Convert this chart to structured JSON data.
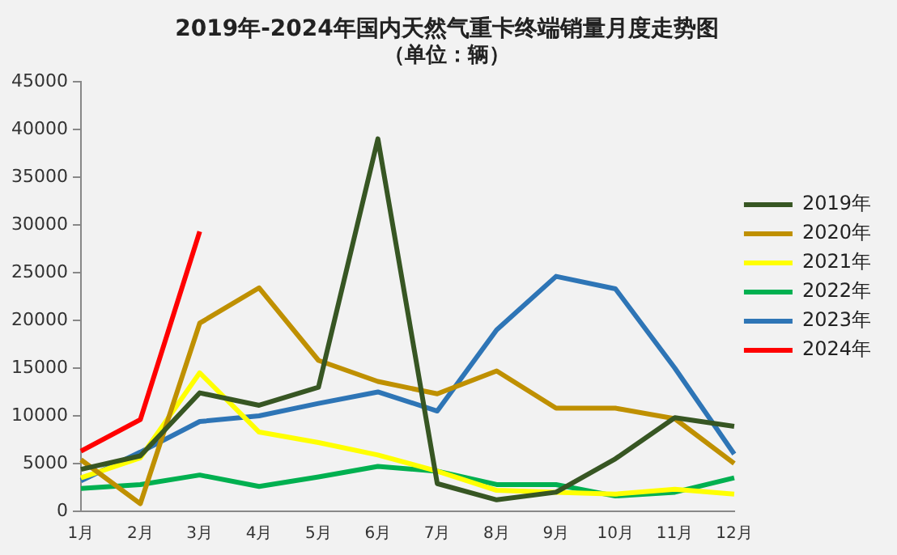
{
  "chart_data": {
    "type": "line",
    "title": "2019年-2024年国内天然气重卡终端销量月度走势图",
    "subtitle": "（单位：辆）",
    "categories": [
      "1月",
      "2月",
      "3月",
      "4月",
      "5月",
      "6月",
      "7月",
      "8月",
      "9月",
      "10月",
      "11月",
      "12月"
    ],
    "series": [
      {
        "name": "2019年",
        "color": "#375623",
        "values": [
          4400,
          5800,
          12400,
          11100,
          13000,
          39000,
          2900,
          1200,
          2000,
          5500,
          9800,
          8900
        ]
      },
      {
        "name": "2020年",
        "color": "#bf9000",
        "values": [
          5400,
          800,
          19700,
          23400,
          15800,
          13600,
          12300,
          14700,
          10800,
          10800,
          9700,
          5000
        ]
      },
      {
        "name": "2021年",
        "color": "#ffff00",
        "values": [
          3500,
          5600,
          14500,
          8300,
          7200,
          5900,
          4200,
          2200,
          2000,
          1800,
          2300,
          1800
        ]
      },
      {
        "name": "2022年",
        "color": "#00b050",
        "values": [
          2400,
          2800,
          3800,
          2600,
          3600,
          4700,
          4200,
          2800,
          2800,
          1600,
          2000,
          3500
        ]
      },
      {
        "name": "2023年",
        "color": "#2e75b6",
        "values": [
          3200,
          6200,
          9400,
          10000,
          11300,
          12500,
          10500,
          19000,
          24600,
          23300,
          15000,
          6000
        ]
      },
      {
        "name": "2024年",
        "color": "#ff0000",
        "values": [
          6300,
          9600,
          29300,
          null,
          null,
          null,
          null,
          null,
          null,
          null,
          null,
          null
        ]
      }
    ],
    "ylim": [
      0,
      45000
    ],
    "yticks": [
      0,
      5000,
      10000,
      15000,
      20000,
      25000,
      30000,
      35000,
      40000,
      45000
    ],
    "grid": false,
    "legend": "right",
    "marker": "none",
    "line_style": "solid"
  }
}
